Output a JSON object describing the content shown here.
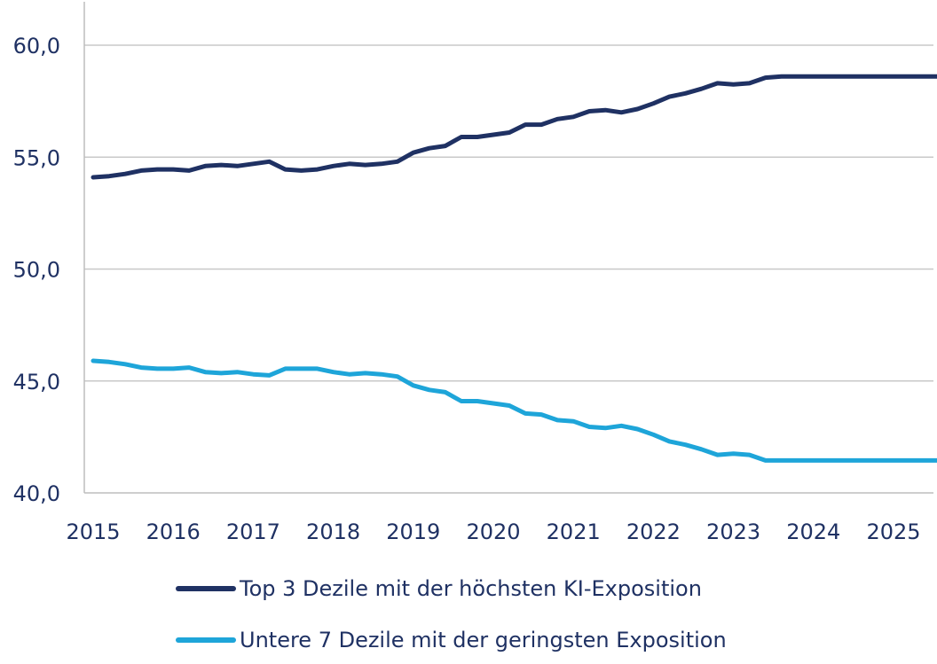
{
  "chart_data": {
    "type": "line",
    "ylim": [
      40,
      60
    ],
    "yticks": [
      60,
      55,
      50,
      45,
      40
    ],
    "ytick_labels": [
      "60,0",
      "55,0",
      "50,0",
      "45,0",
      "40,0"
    ],
    "xlim": [
      2015,
      2025.7
    ],
    "xticks": [
      2015,
      2016,
      2017,
      2018,
      2019,
      2020,
      2021,
      2022,
      2023,
      2024,
      2025
    ],
    "xtick_labels": [
      "2015",
      "2016",
      "2017",
      "2018",
      "2019",
      "2020",
      "2021",
      "2022",
      "2023",
      "2024",
      "2025"
    ],
    "grid": "horizontal",
    "legend_placement": "bottom",
    "x": [
      2015.0,
      2015.2,
      2015.4,
      2015.6,
      2015.8,
      2016.0,
      2016.2,
      2016.4,
      2016.6,
      2016.8,
      2017.0,
      2017.2,
      2017.4,
      2017.6,
      2017.8,
      2018.0,
      2018.2,
      2018.4,
      2018.6,
      2018.8,
      2019.0,
      2019.2,
      2019.4,
      2019.6,
      2019.8,
      2020.0,
      2020.2,
      2020.4,
      2020.6,
      2020.8,
      2021.0,
      2021.2,
      2021.4,
      2021.6,
      2021.8,
      2022.0,
      2022.2,
      2022.4,
      2022.6,
      2022.8,
      2023.0,
      2023.2,
      2023.4,
      2023.6,
      2023.8,
      2024.0,
      2024.2,
      2024.4,
      2024.6,
      2024.8,
      2025.0,
      2025.2,
      2025.4,
      2025.6
    ],
    "series": [
      {
        "name": "Top 3 Dezile mit der höchsten KI-Exposition",
        "color": "#1f3163",
        "values": [
          54.1,
          54.15,
          54.25,
          54.4,
          54.45,
          54.45,
          54.4,
          54.6,
          54.65,
          54.6,
          54.7,
          54.8,
          54.45,
          54.4,
          54.45,
          54.6,
          54.7,
          54.65,
          54.7,
          54.8,
          55.2,
          55.4,
          55.5,
          55.9,
          55.9,
          56.0,
          56.1,
          56.45,
          56.45,
          56.7,
          56.8,
          57.05,
          57.1,
          57.0,
          57.15,
          57.4,
          57.7,
          57.85,
          58.05,
          58.3,
          58.25,
          58.3,
          58.55,
          58.6,
          58.6,
          58.6,
          58.6,
          58.6,
          58.6,
          58.6,
          58.6,
          58.6,
          58.6,
          58.6
        ]
      },
      {
        "name": "Untere 7 Dezile mit der geringsten Exposition",
        "color": "#1ea5d9",
        "values": [
          45.9,
          45.85,
          45.75,
          45.6,
          45.55,
          45.55,
          45.6,
          45.4,
          45.35,
          45.4,
          45.3,
          45.25,
          45.55,
          45.55,
          45.55,
          45.4,
          45.3,
          45.35,
          45.3,
          45.2,
          44.8,
          44.6,
          44.5,
          44.1,
          44.1,
          44.0,
          43.9,
          43.55,
          43.5,
          43.25,
          43.2,
          42.95,
          42.9,
          43.0,
          42.85,
          42.6,
          42.3,
          42.15,
          41.95,
          41.7,
          41.75,
          41.7,
          41.45,
          41.45,
          41.45,
          41.45,
          41.45,
          41.45,
          41.45,
          41.45,
          41.45,
          41.45,
          41.45,
          41.45
        ]
      }
    ]
  },
  "legend": {
    "items": [
      {
        "label": "Top 3 Dezile mit der höchsten KI-Exposition",
        "color": "#1f3163"
      },
      {
        "label": "Untere 7 Dezile mit der geringsten Exposition",
        "color": "#1ea5d9"
      }
    ]
  }
}
